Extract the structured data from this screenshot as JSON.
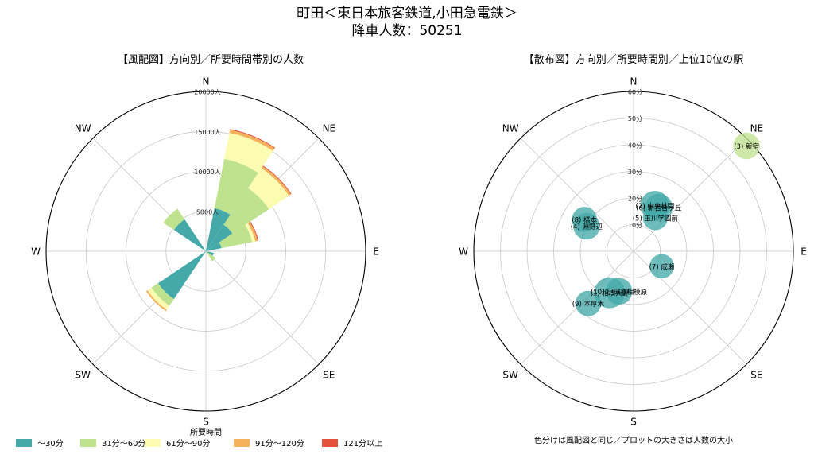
{
  "figure": {
    "title_line1": "町田＜東日本旅客鉄道,小田急電鉄＞",
    "title_line2": "降車人数：50251"
  },
  "colors": {
    "c30": "#45a9a9",
    "c60": "#bfe28f",
    "c90": "#fbfbb2",
    "c120": "#f5b25d",
    "c121": "#e4503b"
  },
  "legend": {
    "title": "所要時間",
    "items": [
      {
        "label": "～30分",
        "color_key": "c30"
      },
      {
        "label": "31分～60分",
        "color_key": "c60"
      },
      {
        "label": "61分～90分",
        "color_key": "c90"
      },
      {
        "label": "91分～120分",
        "color_key": "c120"
      },
      {
        "label": "121分以上",
        "color_key": "c121"
      }
    ]
  },
  "note": "色分けは風配図と同じ／プロットの大きさは人数の大小",
  "chart_data": [
    {
      "type": "bar",
      "polar": true,
      "title": "【風配図】方向別／所要時間帯別の人数",
      "directions": [
        "N",
        "NE",
        "E",
        "SE",
        "S",
        "SW",
        "W",
        "NW"
      ],
      "sector_angles_deg": [
        0,
        22.5,
        45,
        67.5,
        90,
        112.5,
        135,
        157.5,
        180,
        202.5,
        225,
        247.5,
        270,
        292.5,
        315,
        337.5
      ],
      "series": [
        {
          "name": "～30分",
          "color_key": "c30",
          "values": [
            0,
            5500,
            4000,
            2000,
            0,
            1000,
            0,
            0,
            0,
            0,
            7200,
            0,
            0,
            0,
            4800,
            0
          ]
        },
        {
          "name": "31分～60分",
          "color_key": "c60",
          "values": [
            0,
            6300,
            5500,
            3900,
            0,
            0,
            1500,
            0,
            0,
            0,
            1000,
            0,
            0,
            0,
            1600,
            0
          ]
        },
        {
          "name": "61分～90分",
          "color_key": "c90",
          "values": [
            0,
            3300,
            3000,
            400,
            0,
            0,
            0,
            0,
            0,
            0,
            600,
            0,
            0,
            0,
            0,
            0
          ]
        },
        {
          "name": "91分～120分",
          "color_key": "c120",
          "values": [
            0,
            400,
            300,
            300,
            0,
            0,
            0,
            0,
            0,
            0,
            200,
            0,
            0,
            0,
            0,
            0
          ]
        },
        {
          "name": "121分以上",
          "color_key": "c121",
          "values": [
            0,
            100,
            100,
            100,
            0,
            0,
            0,
            0,
            0,
            0,
            0,
            0,
            0,
            0,
            0,
            0
          ]
        }
      ],
      "rmax": 20000,
      "rticks": [
        5000,
        10000,
        15000,
        20000
      ],
      "rtick_labels": [
        "5000人",
        "10000人",
        "15000人",
        "20000人"
      ]
    },
    {
      "type": "scatter",
      "polar": true,
      "title": "【散布図】方向別／所要時間別／上位10位の駅",
      "directions": [
        "N",
        "NE",
        "E",
        "SE",
        "S",
        "SW",
        "W",
        "NW"
      ],
      "rmax": 60,
      "rticks": [
        10,
        20,
        30,
        40,
        50,
        60
      ],
      "rtick_labels": [
        "10分",
        "20分",
        "30分",
        "40分",
        "50分",
        "60分"
      ],
      "points": [
        {
          "label": "(10) 小田急相模原",
          "bearing_deg": 200,
          "minutes": 16,
          "size": 3.2,
          "color_key": "c30"
        },
        {
          "label": "(1) 相模大野",
          "bearing_deg": 210,
          "minutes": 18,
          "size": 5.0,
          "color_key": "c30"
        },
        {
          "label": "(9) 本厚木",
          "bearing_deg": 221,
          "minutes": 26,
          "size": 2.8,
          "color_key": "c30"
        },
        {
          "label": "(7) 成瀬",
          "bearing_deg": 118,
          "minutes": 12,
          "size": 2.4,
          "color_key": "c30"
        },
        {
          "label": "(3) 新宿",
          "bearing_deg": 47,
          "minutes": 58,
          "size": 3.2,
          "color_key": "c60"
        },
        {
          "label": "(2) 中央林間",
          "bearing_deg": 25,
          "minutes": 19,
          "size": 4.2,
          "color_key": "c30"
        },
        {
          "label": "(6) 新百合ヶ丘",
          "bearing_deg": 30,
          "minutes": 19,
          "size": 3.5,
          "color_key": "c30"
        },
        {
          "label": "(5) 玉川学園前",
          "bearing_deg": 33,
          "minutes": 15,
          "size": 2.6,
          "color_key": "c30"
        },
        {
          "label": "(8) 橋本",
          "bearing_deg": 303,
          "minutes": 22,
          "size": 2.6,
          "color_key": "c30"
        },
        {
          "label": "(4) 淵野辺",
          "bearing_deg": 298,
          "minutes": 20,
          "size": 3.2,
          "color_key": "c30"
        }
      ]
    }
  ]
}
